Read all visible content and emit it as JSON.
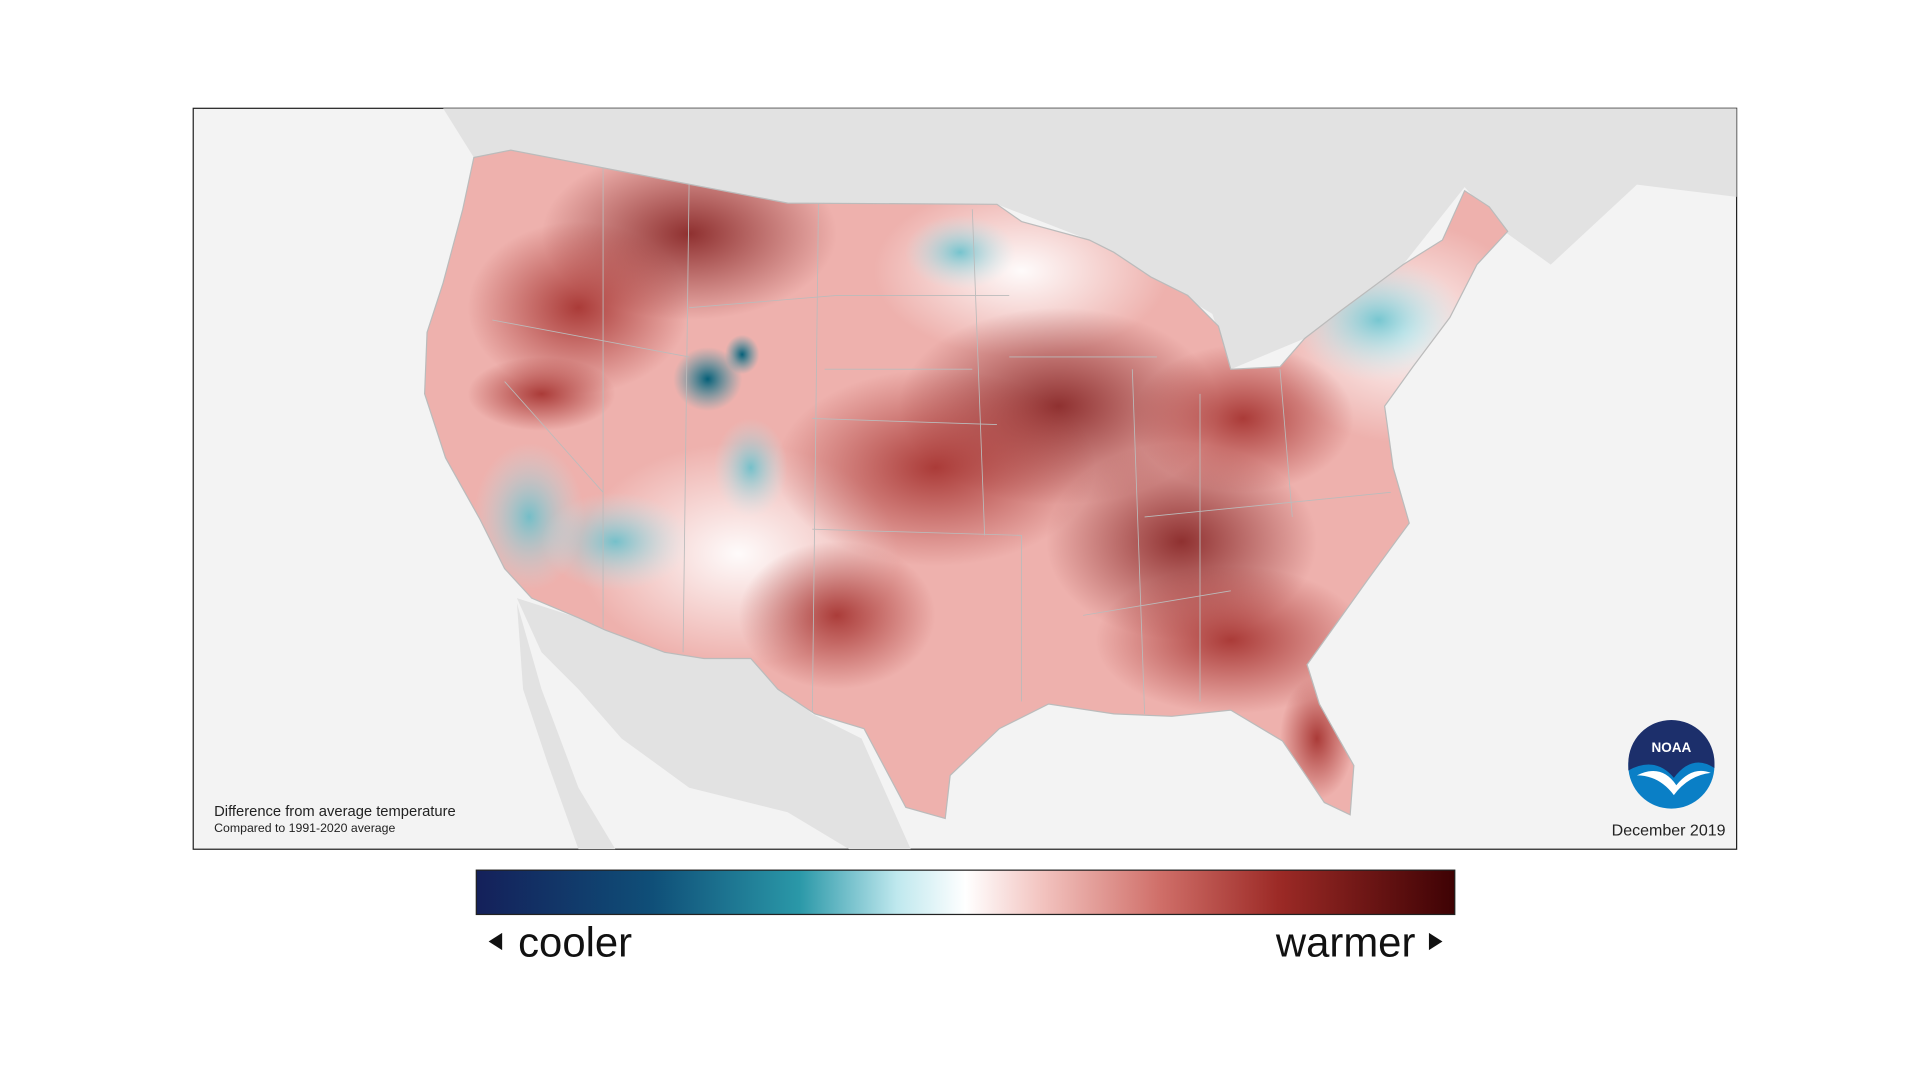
{
  "map": {
    "caption": "Difference from average temperature",
    "subcaption": "Compared to 1991-2020 average",
    "date": "December 2019",
    "logo": "NOAA"
  },
  "legend": {
    "low_label": "cooler",
    "high_label": "warmer"
  }
}
